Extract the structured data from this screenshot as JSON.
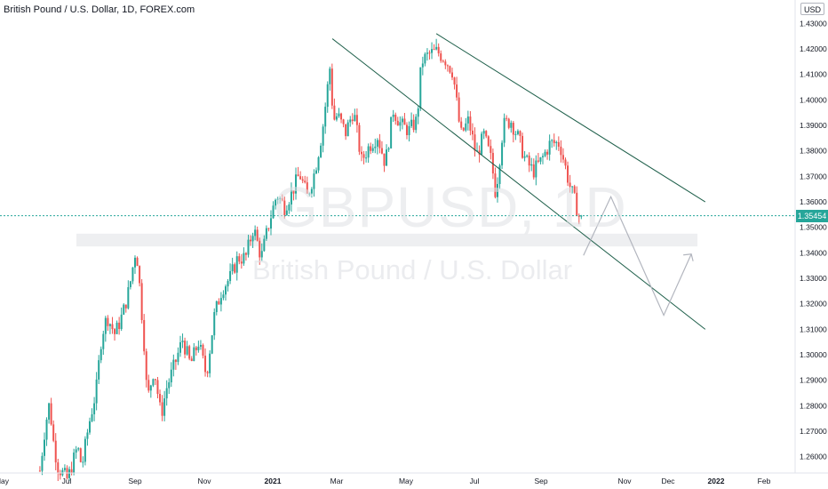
{
  "header": {
    "symbol_title": "British Pound / U.S. Dollar, 1D, FOREX.com",
    "currency": "USD"
  },
  "watermark": {
    "ticker": "GBPUSD, 1D",
    "description": "British Pound / U.S. Dollar"
  },
  "colors": {
    "up": "#26a69a",
    "down": "#ef5350",
    "trendline": "#1e5f4a",
    "projection": "#b2b5be",
    "support_zone": "#eeeff1",
    "axis_text": "#131722",
    "grid_text": "#131722"
  },
  "chart_data": {
    "type": "candlestick",
    "symbol": "GBPUSD",
    "interval": "1D",
    "exchange": "FOREX.com",
    "last_price": 1.35454,
    "ylim": [
      1.2536,
      1.4392
    ],
    "y_ticks": [
      "1.43000",
      "1.42000",
      "1.41000",
      "1.40000",
      "1.39000",
      "1.38000",
      "1.37000",
      "1.36000",
      "1.35000",
      "1.34000",
      "1.33000",
      "1.32000",
      "1.31000",
      "1.30000",
      "1.29000",
      "1.28000",
      "1.27000",
      "1.26000"
    ],
    "x_ticks": [
      "May",
      "Jul",
      "Sep",
      "Nov",
      "2021",
      "Mar",
      "May",
      "Jul",
      "Sep",
      "Nov",
      "Dec",
      "2022",
      "Feb"
    ],
    "close_path": [
      [
        "2020-06-05",
        1.2545
      ],
      [
        "2020-06-10",
        1.272
      ],
      [
        "2020-06-14",
        1.281
      ],
      [
        "2020-06-18",
        1.265
      ],
      [
        "2020-06-22",
        1.256
      ],
      [
        "2020-07-01",
        1.251
      ],
      [
        "2020-07-06",
        1.258
      ],
      [
        "2020-07-10",
        1.264
      ],
      [
        "2020-07-14",
        1.256
      ],
      [
        "2020-07-20",
        1.272
      ],
      [
        "2020-07-27",
        1.286
      ],
      [
        "2020-08-01",
        1.308
      ],
      [
        "2020-08-06",
        1.315
      ],
      [
        "2020-08-13",
        1.308
      ],
      [
        "2020-08-20",
        1.316
      ],
      [
        "2020-08-26",
        1.326
      ],
      [
        "2020-09-01",
        1.342
      ],
      [
        "2020-09-03",
        1.334
      ],
      [
        "2020-09-08",
        1.306
      ],
      [
        "2020-09-11",
        1.282
      ],
      [
        "2020-09-17",
        1.295
      ],
      [
        "2020-09-23",
        1.276
      ],
      [
        "2020-09-28",
        1.287
      ],
      [
        "2020-10-05",
        1.296
      ],
      [
        "2020-10-12",
        1.306
      ],
      [
        "2020-10-19",
        1.296
      ],
      [
        "2020-10-26",
        1.305
      ],
      [
        "2020-11-02",
        1.292
      ],
      [
        "2020-11-09",
        1.315
      ],
      [
        "2020-11-16",
        1.326
      ],
      [
        "2020-11-23",
        1.33
      ],
      [
        "2020-11-30",
        1.338
      ],
      [
        "2020-12-07",
        1.338
      ],
      [
        "2020-12-14",
        1.35
      ],
      [
        "2020-12-21",
        1.338
      ],
      [
        "2020-12-28",
        1.352
      ],
      [
        "2021-01-04",
        1.363
      ],
      [
        "2021-01-11",
        1.358
      ],
      [
        "2021-01-18",
        1.364
      ],
      [
        "2021-01-25",
        1.371
      ],
      [
        "2021-02-01",
        1.362
      ],
      [
        "2021-02-08",
        1.372
      ],
      [
        "2021-02-15",
        1.388
      ],
      [
        "2021-02-22",
        1.413
      ],
      [
        "2021-02-25",
        1.392
      ],
      [
        "2021-03-01",
        1.394
      ],
      [
        "2021-03-08",
        1.387
      ],
      [
        "2021-03-15",
        1.396
      ],
      [
        "2021-03-22",
        1.376
      ],
      [
        "2021-03-29",
        1.382
      ],
      [
        "2021-04-05",
        1.386
      ],
      [
        "2021-04-12",
        1.375
      ],
      [
        "2021-04-19",
        1.396
      ],
      [
        "2021-04-26",
        1.39
      ],
      [
        "2021-05-03",
        1.388
      ],
      [
        "2021-05-10",
        1.392
      ],
      [
        "2021-05-14",
        1.415
      ],
      [
        "2021-05-21",
        1.418
      ],
      [
        "2021-05-28",
        1.419
      ],
      [
        "2021-06-04",
        1.416
      ],
      [
        "2021-06-11",
        1.411
      ],
      [
        "2021-06-18",
        1.386
      ],
      [
        "2021-06-25",
        1.392
      ],
      [
        "2021-07-02",
        1.378
      ],
      [
        "2021-07-09",
        1.386
      ],
      [
        "2021-07-16",
        1.376
      ],
      [
        "2021-07-20",
        1.363
      ],
      [
        "2021-07-27",
        1.39
      ],
      [
        "2021-08-03",
        1.392
      ],
      [
        "2021-08-10",
        1.385
      ],
      [
        "2021-08-17",
        1.376
      ],
      [
        "2021-08-24",
        1.372
      ],
      [
        "2021-08-31",
        1.376
      ],
      [
        "2021-09-07",
        1.383
      ],
      [
        "2021-09-14",
        1.383
      ],
      [
        "2021-09-21",
        1.367
      ],
      [
        "2021-09-28",
        1.355
      ],
      [
        "2021-09-30",
        1.3454
      ]
    ],
    "annotations": {
      "channel_upper": [
        [
          "2021-05-28",
          1.426
        ],
        [
          "2021-12-25",
          1.36
        ]
      ],
      "channel_lower": [
        [
          "2021-02-25",
          1.424
        ],
        [
          "2021-12-25",
          1.31
        ]
      ],
      "support_zone": {
        "from": "2020-04-25",
        "to": "2021-12-20",
        "y": [
          1.3425,
          1.3475
        ]
      },
      "projection_path": [
        [
          "2021-10-02",
          1.339
        ],
        [
          "2021-10-22",
          1.362
        ],
        [
          "2021-11-28",
          1.3155
        ],
        [
          "2021-12-16",
          1.3395
        ],
        [
          "2021-12-10",
          1.338
        ],
        [
          "2021-12-16",
          1.3395
        ],
        [
          "2021-12-20",
          1.337
        ]
      ]
    }
  }
}
